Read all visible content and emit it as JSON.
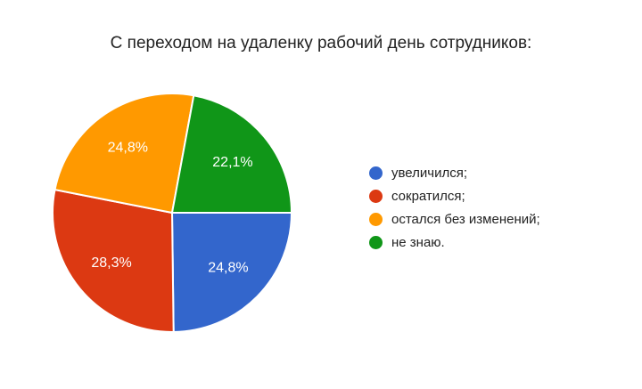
{
  "chart_data": {
    "type": "pie",
    "title": "С переходом на удаленку рабочий день сотрудников:",
    "legend_position": "right",
    "categories": [
      "увеличился;",
      "сократился;",
      "остался без изменений;",
      "не знаю."
    ],
    "values": [
      24.8,
      28.3,
      24.8,
      22.1
    ],
    "value_labels": [
      "24,8%",
      "28,3%",
      "24,8%",
      "22,1%"
    ],
    "colors": [
      "#3366cc",
      "#dc3912",
      "#ff9900",
      "#109618"
    ]
  }
}
